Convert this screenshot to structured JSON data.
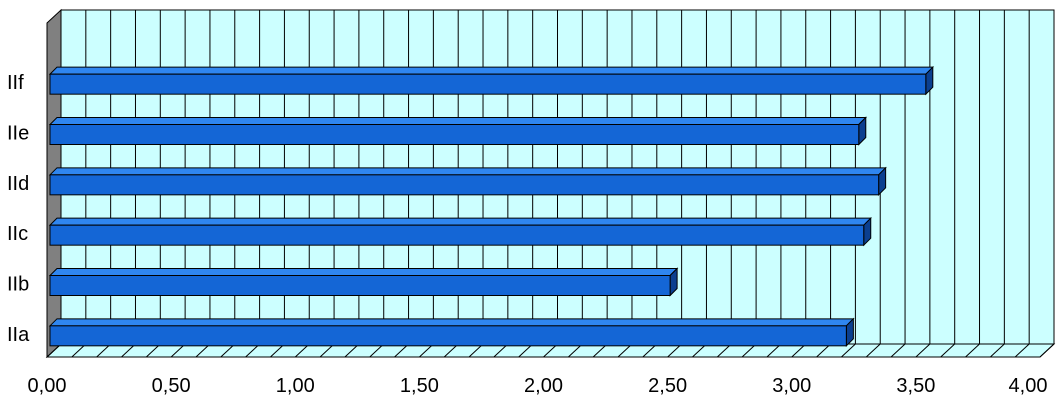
{
  "chart_data": {
    "type": "bar",
    "orientation": "horizontal",
    "style": "3d",
    "categories": [
      "IIa",
      "IIb",
      "IIc",
      "IId",
      "IIe",
      "IIf"
    ],
    "values": [
      3.22,
      2.51,
      3.29,
      3.35,
      3.27,
      3.54
    ],
    "title": "",
    "xlabel": "",
    "ylabel": "",
    "xlim": [
      0,
      4
    ],
    "x_ticks": [
      "0,00",
      "0,50",
      "1,00",
      "1,50",
      "2,00",
      "2,50",
      "3,00",
      "3,50",
      "4,00"
    ],
    "grid": true,
    "legend": "none",
    "colors": {
      "bar_face": "#1466d6",
      "bar_top": "#2f86f0",
      "bar_side": "#0b3f8f",
      "bar_outline": "#000000",
      "plot_background": "#ccffff",
      "side_wall": "#808080",
      "gridline": "#000000"
    }
  }
}
